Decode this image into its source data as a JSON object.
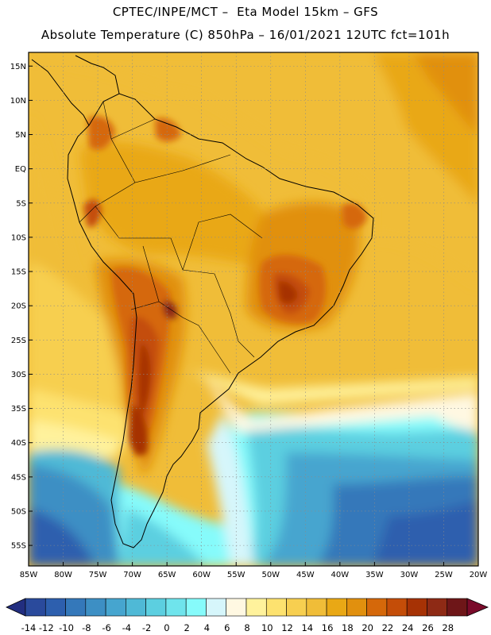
{
  "header": {
    "line1": "CPTEC/INPE/MCT –  Eta Model 15km – GFS",
    "line2": "Absolute Temperature (C) 850hPa – 16/01/2021 12UTC fct=101h"
  },
  "map": {
    "lon_range": [
      -85,
      -20
    ],
    "lat_range": [
      -58,
      17
    ],
    "lat_ticks": [
      {
        "value": 15,
        "label": "15N"
      },
      {
        "value": 10,
        "label": "10N"
      },
      {
        "value": 5,
        "label": "5N"
      },
      {
        "value": 0,
        "label": "EQ"
      },
      {
        "value": -5,
        "label": "5S"
      },
      {
        "value": -10,
        "label": "10S"
      },
      {
        "value": -15,
        "label": "15S"
      },
      {
        "value": -20,
        "label": "20S"
      },
      {
        "value": -25,
        "label": "25S"
      },
      {
        "value": -30,
        "label": "30S"
      },
      {
        "value": -35,
        "label": "35S"
      },
      {
        "value": -40,
        "label": "40S"
      },
      {
        "value": -45,
        "label": "45S"
      },
      {
        "value": -50,
        "label": "50S"
      },
      {
        "value": -55,
        "label": "55S"
      }
    ],
    "lon_ticks": [
      {
        "value": -85,
        "label": "85W"
      },
      {
        "value": -80,
        "label": "80W"
      },
      {
        "value": -75,
        "label": "75W"
      },
      {
        "value": -70,
        "label": "70W"
      },
      {
        "value": -65,
        "label": "65W"
      },
      {
        "value": -60,
        "label": "60W"
      },
      {
        "value": -55,
        "label": "55W"
      },
      {
        "value": -50,
        "label": "50W"
      },
      {
        "value": -45,
        "label": "45W"
      },
      {
        "value": -40,
        "label": "40W"
      },
      {
        "value": -35,
        "label": "35W"
      },
      {
        "value": -30,
        "label": "30W"
      },
      {
        "value": -25,
        "label": "25W"
      },
      {
        "value": -20,
        "label": "20W"
      }
    ]
  },
  "colorbar": {
    "labels": [
      "-14",
      "-12",
      "-10",
      "-8",
      "-6",
      "-4",
      "-2",
      "0",
      "2",
      "4",
      "6",
      "8",
      "10",
      "12",
      "14",
      "16",
      "18",
      "20",
      "22",
      "24",
      "26",
      "28"
    ],
    "colors": [
      "#2a4a9c",
      "#2d5fae",
      "#3478ba",
      "#3d8fc4",
      "#46a5cf",
      "#4fb9d6",
      "#5ccfe0",
      "#6fe4ec",
      "#86fbfb",
      "#d6f6fb",
      "#fff8e2",
      "#fff29c",
      "#fde26f",
      "#f7cf50",
      "#f0bd38",
      "#e9a815",
      "#e1900e",
      "#d5680a",
      "#c44d08",
      "#a63205",
      "#8e2a15",
      "#6e1618"
    ],
    "under_color": "#222e80",
    "over_color": "#7a0a2a"
  }
}
